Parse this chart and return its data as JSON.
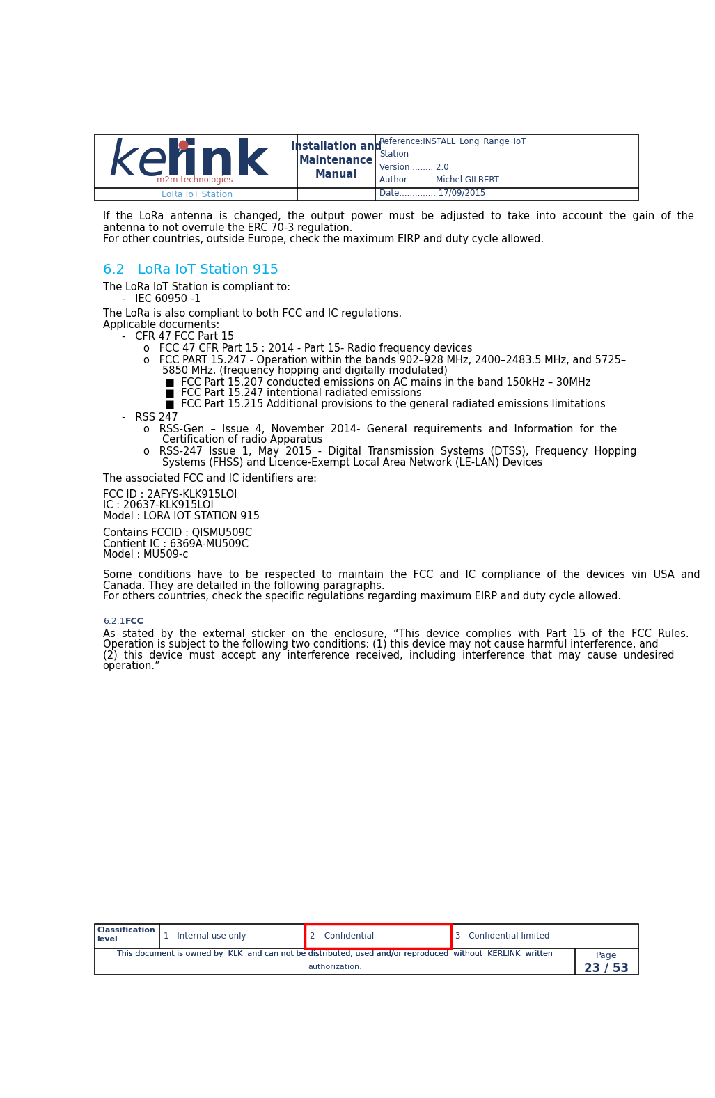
{
  "page_width": 10.27,
  "page_height": 15.77,
  "dpi": 100,
  "bg_color": "#ffffff",
  "text_color": "#000000",
  "dark_blue": "#1f3864",
  "light_blue": "#5b9bd5",
  "cyan_blue": "#00b0f0",
  "pink_red": "#c0504d",
  "red": "#ff0000",
  "header": {
    "ker_color": "#5b9bd5",
    "link_color": "#1f3864",
    "m2m_color": "#c0504d",
    "center_text": "Installation and\nMaintenance\nManual",
    "right_lines": [
      "Reference:INSTALL_Long_Range_IoT_",
      "Station",
      "Version ........ 2.0",
      "Author ......... Michel GILBERT",
      "Date.............. 17/09/2015"
    ],
    "bottom_text": "LoRa IoT Station"
  },
  "footer": {
    "class_label": "Classification\nlevel",
    "col1": "1 - Internal use only",
    "col2": "2 – Confidential",
    "col3": "3 - Confidential limited",
    "bottom_line1": "This document is owned by  KLK  and can not be distributed, used and/or reproduced  without  KERLINK  written",
    "bottom_line2": "authorization.",
    "page_top": "Page",
    "page_num": "23 / 53",
    "text_color": "#1f3864"
  }
}
